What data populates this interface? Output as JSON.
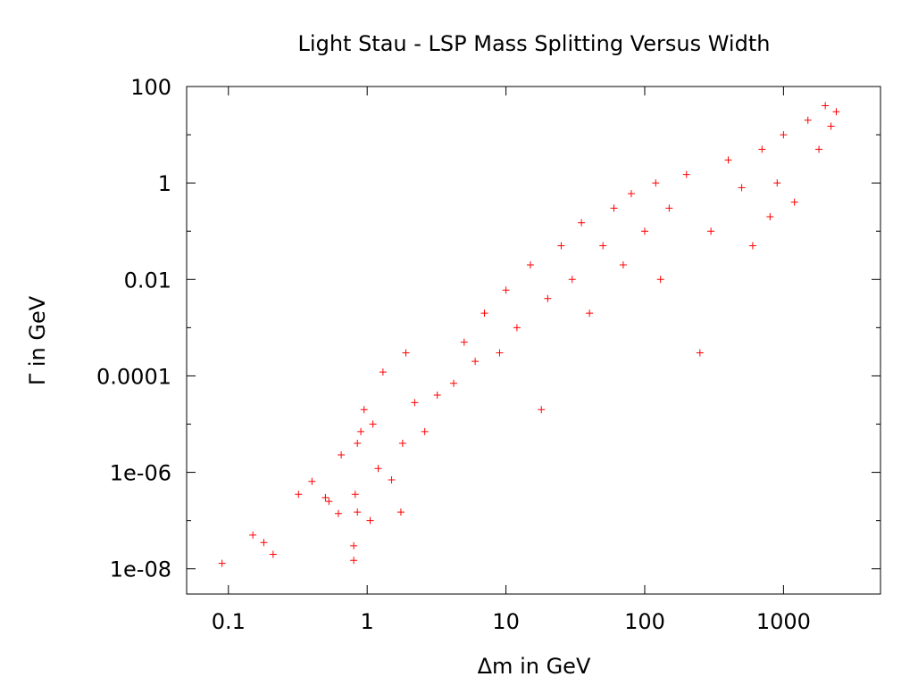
{
  "chart_data": {
    "type": "scatter",
    "title": "Light Stau - LSP Mass Splitting Versus Width",
    "xlabel": "Δm in GeV",
    "ylabel": "Γ in GeV",
    "xscale": "log",
    "yscale": "log",
    "xlim": [
      0.05,
      5000
    ],
    "ylim": [
      3e-09,
      100
    ],
    "x_ticks": [
      {
        "value": 0.1,
        "label": "0.1"
      },
      {
        "value": 1,
        "label": "1"
      },
      {
        "value": 10,
        "label": "10"
      },
      {
        "value": 100,
        "label": "100"
      },
      {
        "value": 1000,
        "label": "1000"
      }
    ],
    "y_ticks": [
      {
        "value": 1e-08,
        "label": "1e-08"
      },
      {
        "value": 1e-06,
        "label": "1e-06"
      },
      {
        "value": 0.0001,
        "label": "0.0001"
      },
      {
        "value": 0.01,
        "label": "0.01"
      },
      {
        "value": 1,
        "label": "1"
      },
      {
        "value": 100,
        "label": "100"
      }
    ],
    "marker": "+",
    "color": "#ff0000",
    "grid": false,
    "series": [
      {
        "name": "stau-lsp-points",
        "points": [
          [
            0.09,
            1.3e-08
          ],
          [
            0.15,
            5e-08
          ],
          [
            0.18,
            3.5e-08
          ],
          [
            0.21,
            2e-08
          ],
          [
            0.32,
            3.5e-07
          ],
          [
            0.4,
            6.5e-07
          ],
          [
            0.5,
            3e-07
          ],
          [
            0.53,
            2.5e-07
          ],
          [
            0.62,
            1.4e-07
          ],
          [
            0.65,
            2.3e-06
          ],
          [
            0.8,
            3e-08
          ],
          [
            0.8,
            1.5e-08
          ],
          [
            0.82,
            3.5e-07
          ],
          [
            0.85,
            1.5e-07
          ],
          [
            0.85,
            4e-06
          ],
          [
            0.9,
            7e-06
          ],
          [
            0.95,
            2e-05
          ],
          [
            1.05,
            1e-07
          ],
          [
            1.1,
            1e-05
          ],
          [
            1.2,
            1.2e-06
          ],
          [
            1.3,
            0.00012
          ],
          [
            1.5,
            7e-07
          ],
          [
            1.75,
            1.5e-07
          ],
          [
            1.8,
            4e-06
          ],
          [
            1.9,
            0.0003
          ],
          [
            2.2,
            2.8e-05
          ],
          [
            2.6,
            7e-06
          ],
          [
            3.2,
            4e-05
          ],
          [
            4.2,
            7e-05
          ],
          [
            5,
            0.0005
          ],
          [
            6,
            0.0002
          ],
          [
            7,
            0.002
          ],
          [
            9,
            0.0003
          ],
          [
            10,
            0.006
          ],
          [
            12,
            0.001
          ],
          [
            15,
            0.02
          ],
          [
            18,
            2e-05
          ],
          [
            20,
            0.004
          ],
          [
            25,
            0.05
          ],
          [
            30,
            0.01
          ],
          [
            35,
            0.15
          ],
          [
            40,
            0.002
          ],
          [
            50,
            0.05
          ],
          [
            60,
            0.3
          ],
          [
            70,
            0.02
          ],
          [
            80,
            0.6
          ],
          [
            100,
            0.1
          ],
          [
            120,
            1
          ],
          [
            130,
            0.01
          ],
          [
            150,
            0.3
          ],
          [
            200,
            1.5
          ],
          [
            250,
            0.0003
          ],
          [
            300,
            0.1
          ],
          [
            400,
            3
          ],
          [
            500,
            0.8
          ],
          [
            600,
            0.05
          ],
          [
            700,
            5
          ],
          [
            800,
            0.2
          ],
          [
            900,
            1
          ],
          [
            1000,
            10
          ],
          [
            1200,
            0.4
          ],
          [
            1500,
            20
          ],
          [
            1800,
            5
          ],
          [
            2000,
            40
          ],
          [
            2200,
            15
          ],
          [
            2400,
            30
          ]
        ]
      }
    ]
  }
}
